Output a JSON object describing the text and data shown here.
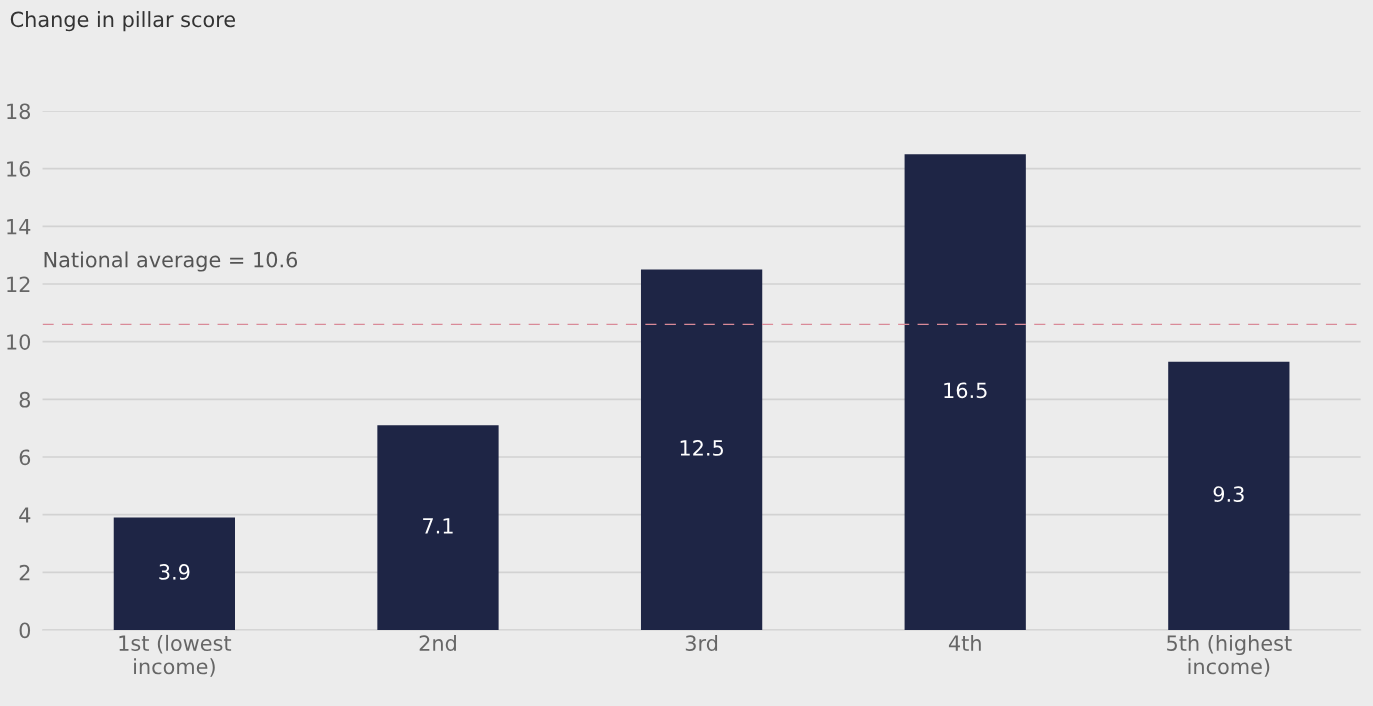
{
  "chart_data": {
    "type": "bar",
    "ylabel": "Change in pillar score",
    "categories": [
      "1st (lowest\nincome)",
      "2nd",
      "3rd",
      "4th",
      "5th (highest\nincome)"
    ],
    "values": [
      3.9,
      7.1,
      12.5,
      16.5,
      9.3
    ],
    "color": "#1e2545",
    "ylim": [
      0,
      18
    ],
    "yticks": [
      0,
      2,
      4,
      6,
      8,
      10,
      12,
      14,
      16,
      18
    ],
    "grid": "y",
    "data_labels": true,
    "ref_lines": [
      {
        "axis": "y",
        "value": 10.6,
        "label": "National average = 10.6",
        "color": "#d98a98",
        "line_style": "dashed"
      }
    ]
  }
}
